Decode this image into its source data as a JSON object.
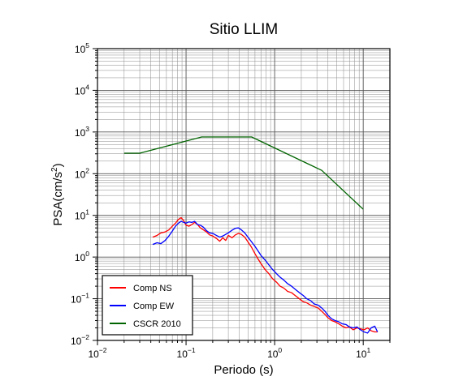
{
  "chart_data": {
    "type": "line",
    "title": "Sitio LLIM",
    "xlabel": "Periodo (s)",
    "ylabel_base": "PSA(cm/s",
    "ylabel_sup": "2",
    "ylabel_close": ")",
    "x_scale": "log",
    "y_scale": "log",
    "xlim": [
      0.01,
      20
    ],
    "ylim": [
      0.01,
      100000
    ],
    "x_ticks": [
      {
        "value": 0.01,
        "base": "10",
        "exp": "−2"
      },
      {
        "value": 0.1,
        "base": "10",
        "exp": "−1"
      },
      {
        "value": 1,
        "base": "10",
        "exp": "0"
      },
      {
        "value": 10,
        "base": "10",
        "exp": "1"
      }
    ],
    "y_ticks": [
      {
        "value": 0.01,
        "base": "10",
        "exp": "−2"
      },
      {
        "value": 0.1,
        "base": "10",
        "exp": "−1"
      },
      {
        "value": 1,
        "base": "10",
        "exp": "0"
      },
      {
        "value": 10,
        "base": "10",
        "exp": "1"
      },
      {
        "value": 100,
        "base": "10",
        "exp": "2"
      },
      {
        "value": 1000,
        "base": "10",
        "exp": "3"
      },
      {
        "value": 10000,
        "base": "10",
        "exp": "4"
      },
      {
        "value": 100000,
        "base": "10",
        "exp": "5"
      }
    ],
    "grid": true,
    "legend_position": "bottom-left",
    "series": [
      {
        "name": "Comp NS",
        "color": "#ff0000",
        "x": [
          0.042,
          0.047,
          0.052,
          0.058,
          0.064,
          0.07,
          0.076,
          0.082,
          0.088,
          0.094,
          0.1,
          0.108,
          0.116,
          0.125,
          0.135,
          0.145,
          0.157,
          0.17,
          0.184,
          0.2,
          0.22,
          0.24,
          0.26,
          0.28,
          0.3,
          0.33,
          0.36,
          0.39,
          0.42,
          0.46,
          0.5,
          0.55,
          0.6,
          0.65,
          0.7,
          0.78,
          0.86,
          0.95,
          1.05,
          1.15,
          1.27,
          1.4,
          1.55,
          1.7,
          1.9,
          2.1,
          2.3,
          2.55,
          2.8,
          3.1,
          3.4,
          3.7,
          4.0,
          4.4,
          4.8,
          5.3,
          5.8,
          6.4,
          7.0,
          7.7,
          8.5,
          9.3,
          10.2,
          11.2,
          12.3,
          13.5,
          14.5
        ],
        "y": [
          3.0,
          3.3,
          3.8,
          4.0,
          4.5,
          5.5,
          6.5,
          8.0,
          8.8,
          7.5,
          5.8,
          5.5,
          6.0,
          6.8,
          6.0,
          5.0,
          4.5,
          4.0,
          3.4,
          3.2,
          2.8,
          2.4,
          2.9,
          2.5,
          3.3,
          2.9,
          3.4,
          3.7,
          3.5,
          3.0,
          2.3,
          1.7,
          1.2,
          0.9,
          0.7,
          0.5,
          0.4,
          0.3,
          0.25,
          0.2,
          0.18,
          0.15,
          0.14,
          0.12,
          0.1,
          0.085,
          0.08,
          0.07,
          0.065,
          0.06,
          0.05,
          0.042,
          0.035,
          0.03,
          0.028,
          0.025,
          0.022,
          0.02,
          0.021,
          0.018,
          0.02,
          0.019,
          0.018,
          0.02,
          0.017,
          0.016,
          0.016
        ]
      },
      {
        "name": "Comp EW",
        "color": "#0000ff",
        "x": [
          0.042,
          0.047,
          0.052,
          0.058,
          0.064,
          0.07,
          0.076,
          0.082,
          0.088,
          0.094,
          0.1,
          0.108,
          0.116,
          0.125,
          0.135,
          0.145,
          0.157,
          0.17,
          0.184,
          0.2,
          0.22,
          0.24,
          0.26,
          0.28,
          0.3,
          0.33,
          0.36,
          0.39,
          0.42,
          0.46,
          0.5,
          0.55,
          0.6,
          0.65,
          0.7,
          0.78,
          0.86,
          0.95,
          1.05,
          1.15,
          1.27,
          1.4,
          1.55,
          1.7,
          1.9,
          2.1,
          2.3,
          2.55,
          2.8,
          3.1,
          3.4,
          3.7,
          4.0,
          4.4,
          4.8,
          5.3,
          5.8,
          6.4,
          7.0,
          7.7,
          8.5,
          9.3,
          10.2,
          11.2,
          12.3,
          13.5,
          14.5
        ],
        "y": [
          2.0,
          2.2,
          2.1,
          2.5,
          3.2,
          4.2,
          5.5,
          6.5,
          7.2,
          6.8,
          6.5,
          7.0,
          6.8,
          7.2,
          6.0,
          5.8,
          5.2,
          4.3,
          3.8,
          3.7,
          3.3,
          3.0,
          3.2,
          3.5,
          3.8,
          4.4,
          4.9,
          5.0,
          4.5,
          3.8,
          3.0,
          2.3,
          1.8,
          1.4,
          1.1,
          0.85,
          0.65,
          0.5,
          0.4,
          0.33,
          0.28,
          0.23,
          0.2,
          0.17,
          0.14,
          0.12,
          0.1,
          0.09,
          0.075,
          0.07,
          0.06,
          0.05,
          0.04,
          0.033,
          0.03,
          0.028,
          0.025,
          0.024,
          0.021,
          0.02,
          0.021,
          0.018,
          0.016,
          0.015,
          0.02,
          0.022,
          0.016
        ]
      },
      {
        "name": "CSCR 2010",
        "color": "#006400",
        "x": [
          0.02,
          0.03,
          0.15,
          0.55,
          3.4,
          10.0
        ],
        "y": [
          310,
          310,
          760,
          760,
          120,
          14
        ]
      }
    ]
  }
}
